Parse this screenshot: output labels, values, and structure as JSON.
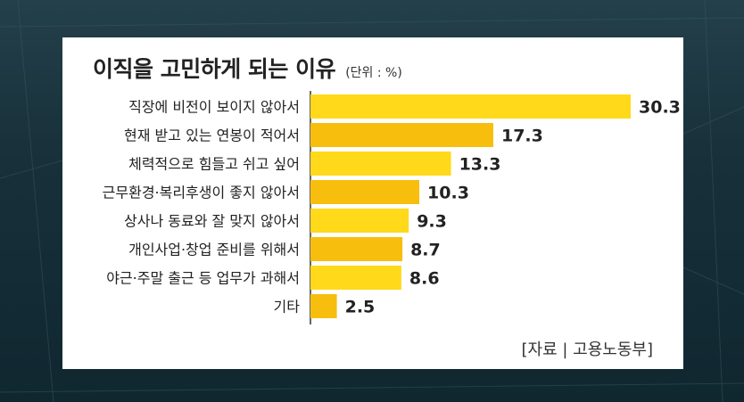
{
  "chart_data": {
    "type": "bar",
    "orientation": "horizontal",
    "title": "이직을 고민하게 되는 이유",
    "unit": "(단위 : %)",
    "categories": [
      "직장에 비전이 보이지 않아서",
      "현재 받고 있는 연봉이 적어서",
      "체력적으로 힘들고 쉬고 싶어",
      "근무환경·복리후생이 좋지 않아서",
      "상사나 동료와 잘 맞지 않아서",
      "개인사업·창업 준비를 위해서",
      "야근·주말 출근 등 업무가 과해서",
      "기타"
    ],
    "values": [
      30.3,
      17.3,
      13.3,
      10.3,
      9.3,
      8.7,
      8.6,
      2.5
    ],
    "value_labels": [
      "30.3",
      "17.3",
      "13.3",
      "10.3",
      "9.3",
      "8.7",
      "8.6",
      "2.5"
    ],
    "xlim": [
      0,
      31
    ],
    "grid": false,
    "source": "[자료 | 고용노동부]",
    "colors": {
      "bar_light": "#FFD91A",
      "bar_dark": "#F7BE0E",
      "axis": "#333333",
      "text": "#222222"
    }
  }
}
